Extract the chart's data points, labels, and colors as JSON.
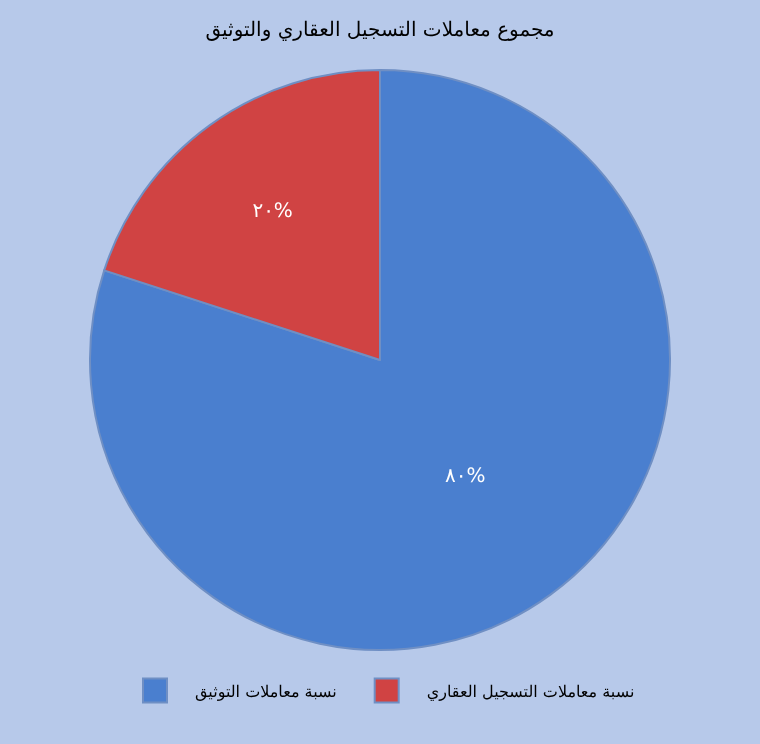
{
  "chart_data": {
    "type": "pie",
    "title": "مجموع معاملات التسجيل العقاري والتوثيق",
    "categories": [
      "نسبة معاملات التوثيق",
      "نسبة معاملات التسجيل العقاري"
    ],
    "values": [
      80,
      20
    ],
    "colors": [
      "#4a7fcf",
      "#d04343"
    ],
    "value_labels": [
      "٨٠%",
      "٢٠%"
    ],
    "legend": "bottom"
  }
}
